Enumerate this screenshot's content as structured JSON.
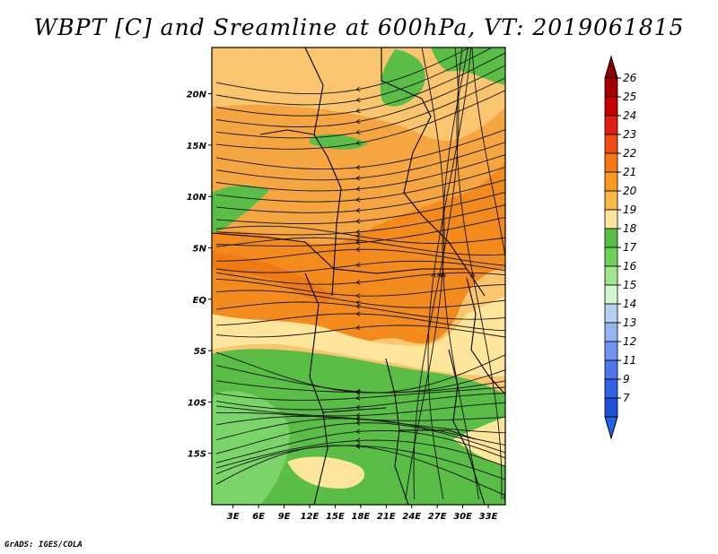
{
  "title": "WBPT [C] and Sreamline at 600hPa, VT: 2019061815",
  "footer": "GrADS: IGES/COLA",
  "map": {
    "lat_labels": [
      "20N",
      "15N",
      "10N",
      "5N",
      "EQ",
      "5S",
      "10S",
      "15S"
    ],
    "lat_values": [
      20,
      15,
      10,
      5,
      0,
      -5,
      -10,
      -15
    ],
    "lon_labels": [
      "3E",
      "6E",
      "9E",
      "12E",
      "15E",
      "18E",
      "21E",
      "24E",
      "27E",
      "30E",
      "33E"
    ],
    "lon_values": [
      3,
      6,
      9,
      12,
      15,
      18,
      21,
      24,
      27,
      30,
      33
    ],
    "lon_range": [
      0.5,
      35.0
    ],
    "lat_range": [
      -20.0,
      24.5
    ]
  },
  "colorbar": {
    "labels": [
      "26",
      "25",
      "24",
      "23",
      "22",
      "21",
      "20",
      "19",
      "18",
      "17",
      "16",
      "15",
      "14",
      "13",
      "12",
      "11",
      "9",
      "7"
    ],
    "colors": [
      "#a50000",
      "#c80000",
      "#e11e14",
      "#f04b14",
      "#f57814",
      "#f89b1e",
      "#fab946",
      "#fde69b",
      "#5abe46",
      "#6ed25a",
      "#a0e68c",
      "#d2f5d2",
      "#b4d2f0",
      "#96b4f0",
      "#6e96f0",
      "#4b78eb",
      "#3264e6",
      "#1e50dc"
    ],
    "top_arrow_color": "#8c0000",
    "bottom_arrow_color": "#1e64e6"
  },
  "field_colors": {
    "light_orange": "#f9bf6a",
    "orange": "#f59a1e",
    "dark_orange": "#f2841a",
    "pale_yellow": "#fde69b",
    "green": "#5abe46",
    "light_green": "#7ad46a"
  }
}
